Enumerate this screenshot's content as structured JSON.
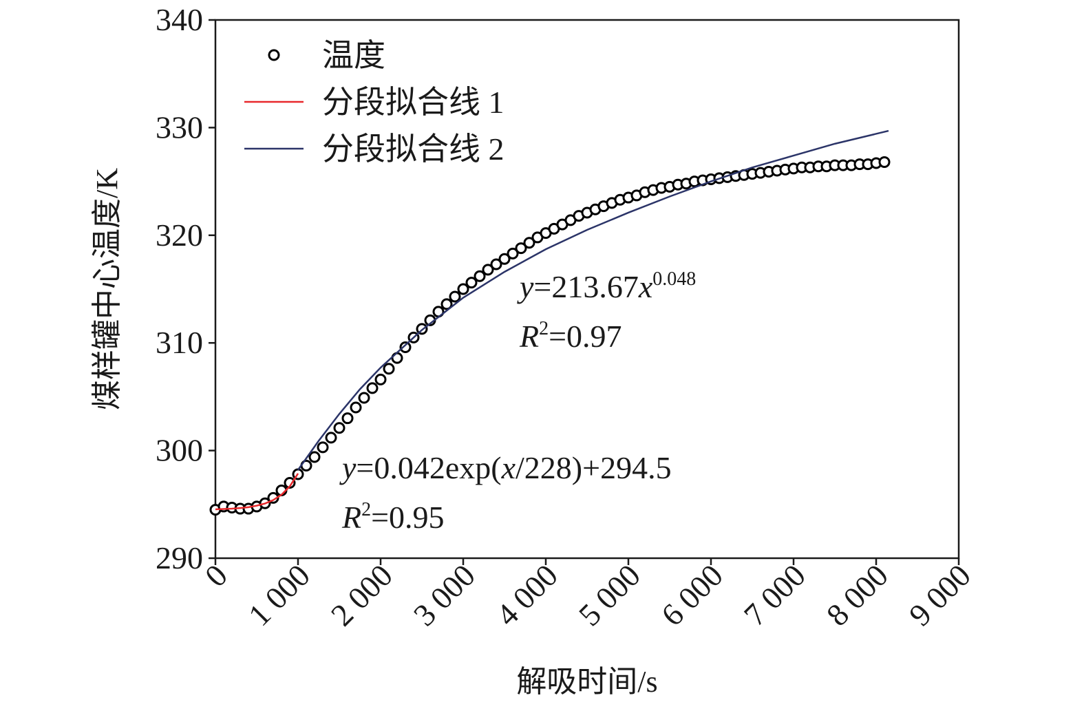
{
  "chart_data": {
    "type": "scatter",
    "xlabel": "解吸时间/s",
    "ylabel": "煤样罐中心温度/K",
    "xlim": [
      0,
      9000
    ],
    "ylim": [
      290,
      340
    ],
    "xticks": [
      0,
      {
        "value": 1000,
        "label": "1 000"
      },
      {
        "value": 2000,
        "label": "2 000"
      },
      {
        "value": 3000,
        "label": "3 000"
      },
      {
        "value": 4000,
        "label": "4 000"
      },
      {
        "value": 5000,
        "label": "5 000"
      },
      {
        "value": 6000,
        "label": "6 000"
      },
      {
        "value": 7000,
        "label": "7 000"
      },
      {
        "value": 8000,
        "label": "8 000"
      },
      {
        "value": 9000,
        "label": "9 000"
      }
    ],
    "yticks": [
      290,
      300,
      310,
      320,
      330,
      340
    ],
    "legend": "upper left",
    "series": [
      {
        "name": "温度",
        "kind": "marker",
        "color": "#000000",
        "x": [
          0,
          100,
          200,
          300,
          400,
          500,
          600,
          700,
          800,
          900,
          1000,
          1100,
          1200,
          1300,
          1400,
          1500,
          1600,
          1700,
          1800,
          1900,
          2000,
          2100,
          2200,
          2300,
          2400,
          2500,
          2600,
          2700,
          2800,
          2900,
          3000,
          3100,
          3200,
          3300,
          3400,
          3500,
          3600,
          3700,
          3800,
          3900,
          4000,
          4100,
          4200,
          4300,
          4400,
          4500,
          4600,
          4700,
          4800,
          4900,
          5000,
          5100,
          5200,
          5300,
          5400,
          5500,
          5600,
          5700,
          5800,
          5900,
          6000,
          6100,
          6200,
          6300,
          6400,
          6500,
          6600,
          6700,
          6800,
          6900,
          7000,
          7100,
          7200,
          7300,
          7400,
          7500,
          7600,
          7700,
          7800,
          7900,
          8000,
          8100
        ],
        "values": [
          294.5,
          294.8,
          294.7,
          294.6,
          294.6,
          294.8,
          295.1,
          295.6,
          296.3,
          297.0,
          297.8,
          298.6,
          299.4,
          300.3,
          301.2,
          302.1,
          303.0,
          304.0,
          304.9,
          305.8,
          306.6,
          307.6,
          308.6,
          309.6,
          310.5,
          311.3,
          312.1,
          312.9,
          313.6,
          314.3,
          315.0,
          315.6,
          316.2,
          316.8,
          317.3,
          317.8,
          318.3,
          318.8,
          319.3,
          319.8,
          320.2,
          320.6,
          321.0,
          321.4,
          321.8,
          322.1,
          322.4,
          322.7,
          323.0,
          323.3,
          323.5,
          323.7,
          324.0,
          324.2,
          324.4,
          324.5,
          324.7,
          324.8,
          325.0,
          325.1,
          325.2,
          325.3,
          325.4,
          325.5,
          325.6,
          325.7,
          325.8,
          325.9,
          326.0,
          326.1,
          326.2,
          326.3,
          326.3,
          326.4,
          326.4,
          326.5,
          326.5,
          326.5,
          326.6,
          326.6,
          326.7,
          326.8
        ]
      },
      {
        "name": "分段拟合线 1",
        "kind": "line",
        "color": "#e8282b",
        "x": [
          0,
          100,
          200,
          300,
          400,
          500,
          600,
          700,
          800,
          900,
          1000
        ],
        "values": [
          294.54,
          294.57,
          294.6,
          294.66,
          294.74,
          294.88,
          295.08,
          295.4,
          295.9,
          296.67,
          297.87
        ]
      },
      {
        "name": "分段拟合线 2",
        "kind": "line",
        "color": "#2b3468",
        "x": [
          1000,
          1250,
          1500,
          1750,
          2000,
          2500,
          3000,
          3500,
          4000,
          4500,
          5000,
          5500,
          6000,
          6500,
          7000,
          7500,
          8150
        ],
        "values": [
          298.2,
          300.9,
          303.4,
          305.7,
          307.7,
          311.2,
          314.2,
          316.6,
          318.7,
          320.5,
          322.1,
          323.6,
          325.0,
          326.3,
          327.4,
          328.5,
          329.7
        ]
      }
    ],
    "annotations": [
      {
        "x": 2,
        "y": 314.5,
        "lines": [
          [
            {
              "text": "y",
              "style": "italic"
            },
            {
              "text": "=213.67",
              "style": "normal"
            },
            {
              "text": "x",
              "style": "italic"
            },
            {
              "text": "0.048",
              "style": "sup"
            }
          ],
          [
            {
              "text": "R",
              "style": "italic"
            },
            {
              "text": "2",
              "style": "sup"
            },
            {
              "text": "=0.97",
              "style": "normal"
            }
          ]
        ]
      },
      {
        "x": 1,
        "y": 297,
        "lines": [
          [
            {
              "text": "y",
              "style": "italic"
            },
            {
              "text": "=0.042exp(",
              "style": "normal"
            },
            {
              "text": "x",
              "style": "italic"
            },
            {
              "text": "/228)+294.5",
              "style": "normal"
            }
          ],
          [
            {
              "text": "R",
              "style": "italic"
            },
            {
              "text": "2",
              "style": "sup"
            },
            {
              "text": "=0.95",
              "style": "normal"
            }
          ]
        ]
      }
    ]
  }
}
